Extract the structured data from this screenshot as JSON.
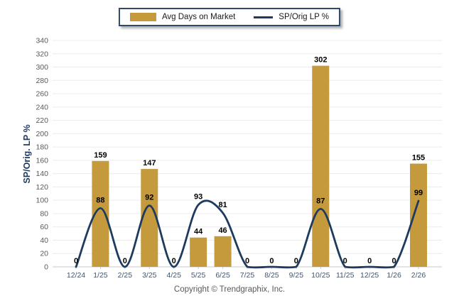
{
  "legend": {
    "bar_label": "Avg Days on Market",
    "line_label": "SP/Orig LP %"
  },
  "y_axis_title": "SP/Orig. LP %",
  "footer": {
    "copyright": "Copyright © Trendgraphix, Inc."
  },
  "colors": {
    "bar": "#C49A3D",
    "line": "#1F3A5F",
    "grid": "#ECECEC",
    "axis_line": "#C9C9C9",
    "y_tick_text": "#595959",
    "x_tick_text": "#44546A",
    "data_label": "#000000",
    "legend_border": "#2E4A6B",
    "copyright_text": "#595959",
    "axis_title_text": "#1F3A5F"
  },
  "chart_data": {
    "type": "combo",
    "categories": [
      "12/24",
      "1/25",
      "2/25",
      "3/25",
      "4/25",
      "5/25",
      "6/25",
      "7/25",
      "8/25",
      "9/25",
      "10/25",
      "11/25",
      "12/25",
      "1/26",
      "2/26"
    ],
    "series": [
      {
        "name": "Avg Days on Market",
        "type": "bar",
        "values": [
          0,
          159,
          0,
          147,
          0,
          44,
          46,
          0,
          0,
          0,
          302,
          0,
          0,
          0,
          155
        ]
      },
      {
        "name": "SP/Orig LP %",
        "type": "line",
        "values": [
          0,
          88,
          0,
          92,
          0,
          93,
          81,
          0,
          0,
          0,
          87,
          0,
          0,
          0,
          99
        ]
      }
    ],
    "title": "",
    "xlabel": "",
    "ylabel": "SP/Orig. LP %",
    "ylim": [
      0,
      340
    ],
    "ytick_step": 20,
    "yticks": [
      0,
      20,
      40,
      60,
      80,
      100,
      120,
      140,
      160,
      180,
      200,
      220,
      240,
      260,
      280,
      300,
      320,
      340
    ],
    "grid": true,
    "legend_position": "top",
    "data_labels_visible": true,
    "line_interpolation": "spline"
  }
}
